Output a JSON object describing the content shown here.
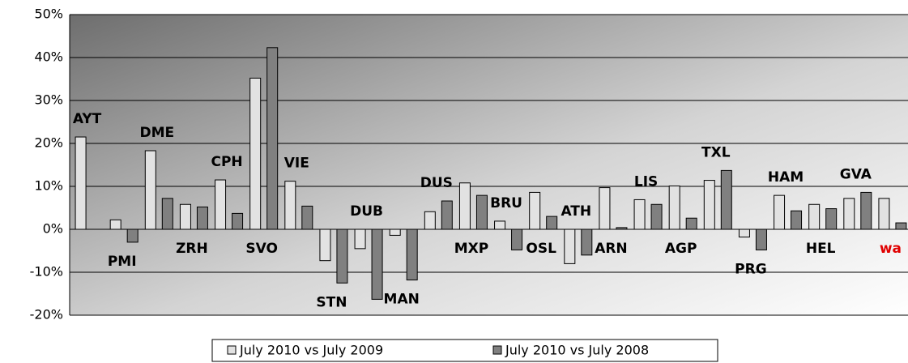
{
  "chart_data": {
    "type": "bar",
    "categories": [
      "AYT",
      "PMI",
      "DME",
      "ZRH",
      "CPH",
      "SVO",
      "VIE",
      "STN",
      "DUB",
      "MAN",
      "DUS",
      "MXP",
      "BRU",
      "OSL",
      "ATH",
      "ARN",
      "LIS",
      "AGP",
      "TXL",
      "PRG",
      "HAM",
      "HEL",
      "GVA",
      "wa"
    ],
    "series": [
      {
        "name": "July 2010 vs July 2009",
        "color": "#e2e2e2",
        "values": [
          21.5,
          2.2,
          18.3,
          5.8,
          11.5,
          35.2,
          11.2,
          -7.3,
          -4.5,
          -1.4,
          4.1,
          10.8,
          1.9,
          8.6,
          -8.0,
          9.7,
          6.9,
          10.1,
          11.4,
          -1.8,
          7.9,
          5.8,
          7.2,
          7.2
        ]
      },
      {
        "name": "July 2010 vs July 2008",
        "color": "#808080",
        "values": [
          null,
          -3.0,
          7.2,
          5.2,
          3.7,
          42.3,
          5.4,
          -12.5,
          -16.3,
          -11.8,
          6.6,
          7.9,
          -4.8,
          3.0,
          -6.0,
          0.4,
          5.8,
          2.6,
          13.7,
          -4.8,
          4.3,
          4.8,
          8.6,
          1.5
        ]
      }
    ],
    "ylim": [
      -20,
      50
    ],
    "yticks": [
      {
        "value": -20,
        "label": "-20%"
      },
      {
        "value": -10,
        "label": "-10%"
      },
      {
        "value": 0,
        "label": "0%"
      },
      {
        "value": 10,
        "label": "10%"
      },
      {
        "value": 20,
        "label": "20%"
      },
      {
        "value": 30,
        "label": "30%"
      },
      {
        "value": 40,
        "label": "40%"
      },
      {
        "value": 50,
        "label": "50%"
      }
    ],
    "grid": true,
    "legend": "bottom"
  }
}
